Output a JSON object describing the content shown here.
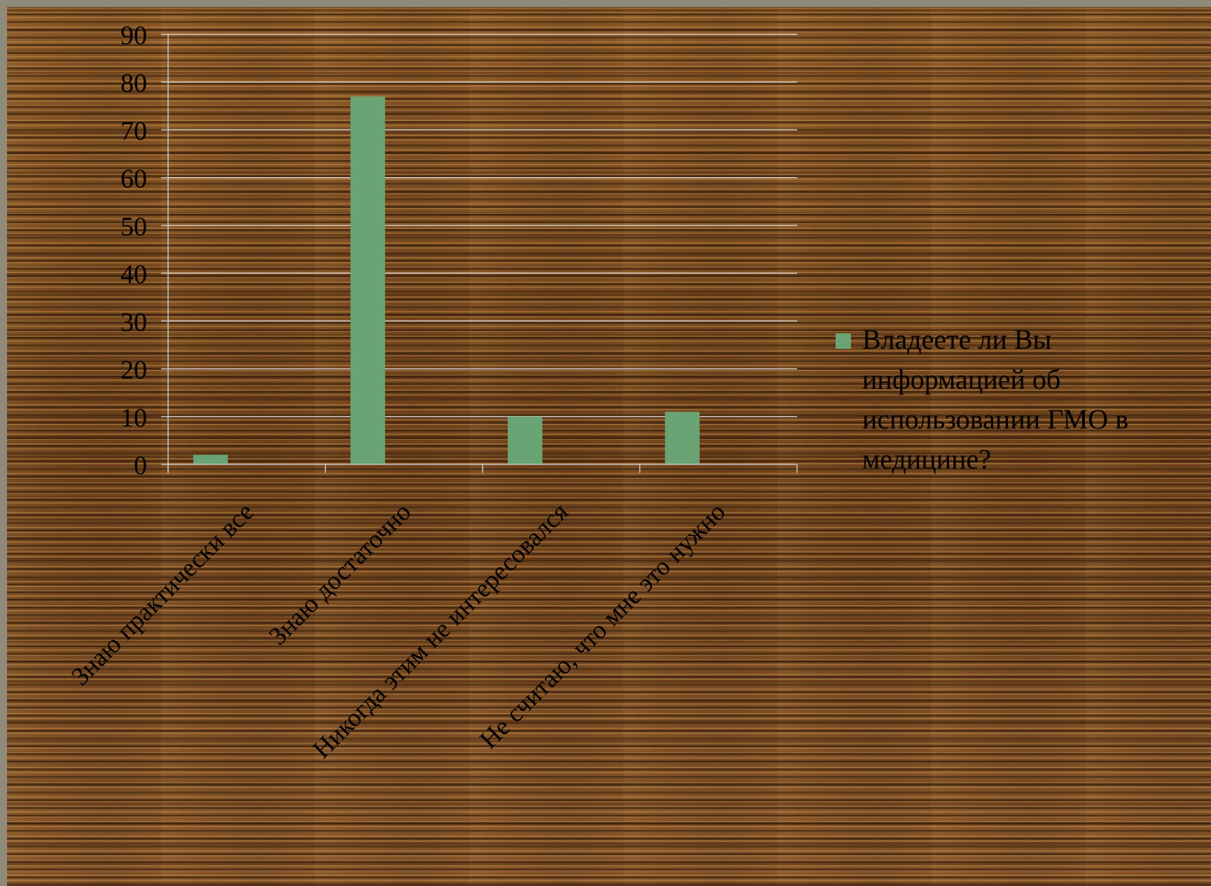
{
  "chart_data": {
    "type": "bar",
    "categories": [
      "Знаю практически все",
      "Знаю достаточно",
      "Никогда этим не интересовался",
      "Не считаю, что мне это нужно"
    ],
    "series": [
      {
        "name": "Владеете ли Вы информацией об использовании ГМО в медицине?",
        "values": [
          2,
          77,
          10,
          11
        ],
        "color": "#6aa374"
      }
    ],
    "yticks": [
      "0",
      "10",
      "20",
      "30",
      "40",
      "50",
      "60",
      "70",
      "80",
      "90"
    ],
    "ylim": [
      0,
      90
    ],
    "grid": true,
    "legend_position": "right",
    "legend_lines": [
      "Владеете ли Вы",
      "информацией об",
      "использовании ГМО в",
      "медицине?"
    ]
  }
}
